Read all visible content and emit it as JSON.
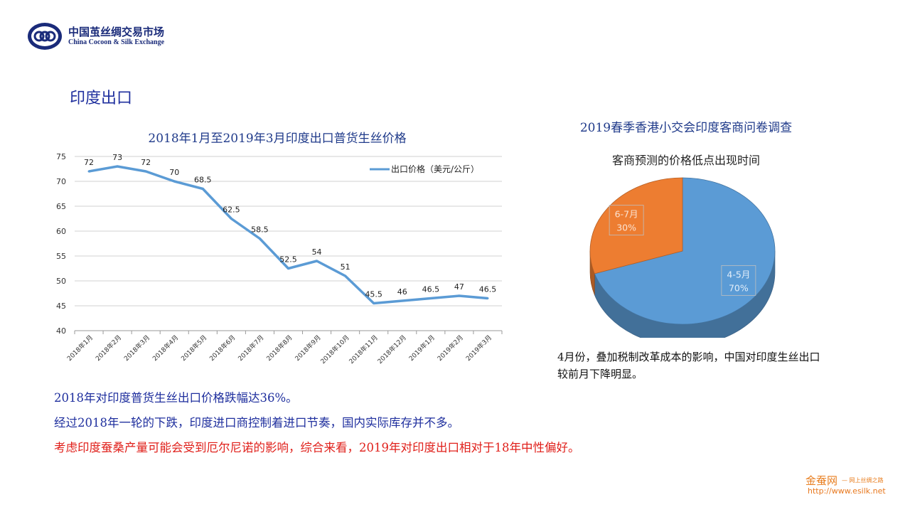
{
  "header": {
    "logo_cn": "中国茧丝绸交易市场",
    "logo_en": "China Cocoon & Silk Exchange"
  },
  "page_title": "印度出口",
  "chart_data": [
    {
      "type": "line",
      "title": "2018年1月至2019年3月印度出口普货生丝价格",
      "categories": [
        "2018年1月",
        "2018年2月",
        "2018年3月",
        "2018年4月",
        "2018年5月",
        "2018年6月",
        "2018年7月",
        "2018年8月",
        "2018年9月",
        "2018年10月",
        "2018年11月",
        "2018年12月",
        "2019年1月",
        "2019年2月",
        "2019年3月"
      ],
      "series": [
        {
          "name": "出口价格（美元/公斤）",
          "values": [
            72,
            73,
            72,
            70,
            68.5,
            62.5,
            58.5,
            52.5,
            54,
            51,
            45.5,
            46,
            46.5,
            47,
            46.5
          ],
          "labels": [
            "72",
            "73",
            "72",
            "70",
            "68.5",
            "62.5",
            "58.5",
            "52.5",
            "54",
            "51",
            "45.5",
            "46",
            "46.5",
            "47",
            "46.5"
          ]
        }
      ],
      "ylim": [
        40,
        75
      ],
      "yticks": [
        "40",
        "45",
        "50",
        "55",
        "60",
        "65",
        "70",
        "75"
      ],
      "grid": true,
      "legend_position": "top-right",
      "color": "#5b9bd5"
    },
    {
      "type": "pie",
      "title": "2019春季香港小交会印度客商问卷调查",
      "subtitle": "客商预测的价格低点出现时间",
      "slices": [
        {
          "label": "4-5月",
          "value": 70,
          "pct": "70%",
          "color": "#5b9bd5"
        },
        {
          "label": "6-7月",
          "value": 30,
          "pct": "30%",
          "color": "#ed7d31"
        }
      ]
    }
  ],
  "pie_note": "4月份，叠加税制改革成本的影响，中国对印度生丝出口较前月下降明显。",
  "notes": [
    "2018年对印度普货生丝出口价格跌幅达36%。",
    "经过2018年一轮的下跌，印度进口商控制着进口节奏，国内实际库存并不多。",
    "考虑印度蚕桑产量可能会受到厄尔尼诺的影响，综合来看，2019年对印度出口相对于18年中性偏好。"
  ],
  "watermark": {
    "brand": "金蚕网",
    "slogan": "— 网上丝绸之路",
    "url": "http://www.esilk.net"
  }
}
